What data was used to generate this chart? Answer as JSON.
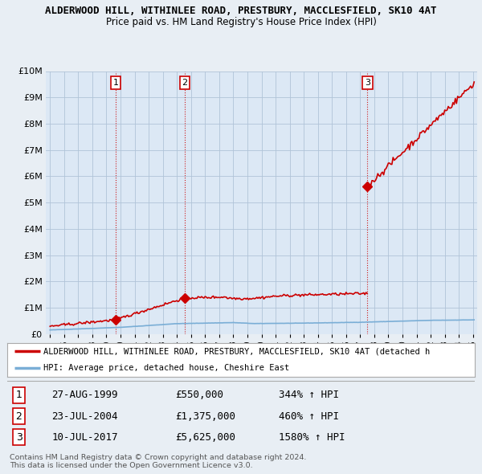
{
  "title": "ALDERWOOD HILL, WITHINLEE ROAD, PRESTBURY, MACCLESFIELD, SK10 4AT",
  "subtitle": "Price paid vs. HM Land Registry's House Price Index (HPI)",
  "legend_label_red": "ALDERWOOD HILL, WITHINLEE ROAD, PRESTBURY, MACCLESFIELD, SK10 4AT (detached h",
  "legend_label_blue": "HPI: Average price, detached house, Cheshire East",
  "footer1": "Contains HM Land Registry data © Crown copyright and database right 2024.",
  "footer2": "This data is licensed under the Open Government Licence v3.0.",
  "transactions": [
    {
      "num": "1",
      "date": "27-AUG-1999",
      "price": "£550,000",
      "hpi": "344% ↑ HPI",
      "x_year": 1999.65
    },
    {
      "num": "2",
      "date": "23-JUL-2004",
      "price": "£1,375,000",
      "hpi": "460% ↑ HPI",
      "x_year": 2004.55
    },
    {
      "num": "3",
      "date": "10-JUL-2017",
      "price": "£5,625,000",
      "hpi": "1580% ↑ HPI",
      "x_year": 2017.52
    }
  ],
  "ylim": [
    0,
    10000000
  ],
  "xlim_start": 1994.7,
  "xlim_end": 2025.3,
  "hpi_color": "#7aaed6",
  "sale_color": "#cc0000",
  "background_color": "#e8eef4",
  "plot_bg": "#dce8f5",
  "grid_color": "#b0c4d8",
  "legend_bg": "#ffffff",
  "table_bg": "#e8eef4"
}
